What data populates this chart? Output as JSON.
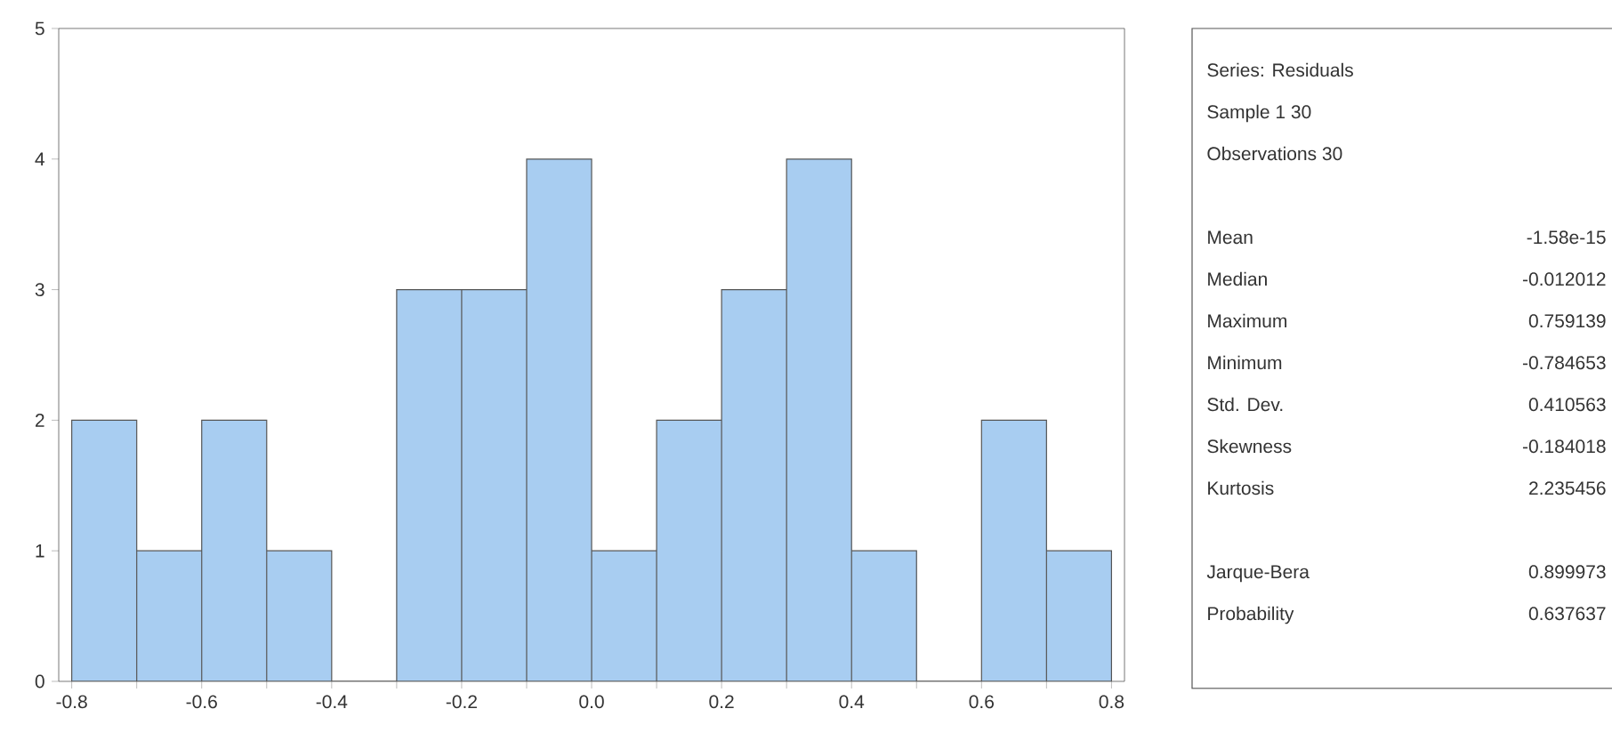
{
  "chart_data": [
    {
      "type": "histogram",
      "bins": [
        -0.8,
        -0.7,
        -0.6,
        -0.5,
        -0.4,
        -0.3,
        -0.2,
        -0.1,
        0.0,
        0.1,
        0.2,
        0.3,
        0.4,
        0.5,
        0.6,
        0.7,
        0.8
      ],
      "values": [
        2,
        1,
        2,
        1,
        0,
        3,
        3,
        4,
        1,
        2,
        3,
        4,
        1,
        0,
        2,
        1
      ],
      "color": "#a8cdf1",
      "xlim": [
        -0.82,
        0.82
      ],
      "xticks": [
        {
          "value": -0.8,
          "label": "-0.8"
        },
        {
          "value": -0.7,
          "label": null
        },
        {
          "value": -0.6,
          "label": "-0.6"
        },
        {
          "value": -0.5,
          "label": null
        },
        {
          "value": -0.4,
          "label": "-0.4"
        },
        {
          "value": -0.3,
          "label": null
        },
        {
          "value": -0.2,
          "label": "-0.2"
        },
        {
          "value": -0.1,
          "label": null
        },
        {
          "value": 0.0,
          "label": "0.0"
        },
        {
          "value": 0.1,
          "label": null
        },
        {
          "value": 0.2,
          "label": "0.2"
        },
        {
          "value": 0.3,
          "label": null
        },
        {
          "value": 0.4,
          "label": "0.4"
        },
        {
          "value": 0.5,
          "label": null
        },
        {
          "value": 0.6,
          "label": "0.6"
        },
        {
          "value": 0.7,
          "label": null
        },
        {
          "value": 0.8,
          "label": "0.8"
        }
      ],
      "ylim": [
        0,
        5
      ],
      "yticks": [
        0,
        1,
        2,
        3,
        4,
        5
      ],
      "grid": false
    },
    {
      "type": "other",
      "annotations": [
        "Series: Residuals",
        "Sample 1 30",
        "Observations 30",
        "Mean",
        "-1.58e-15",
        "Median",
        "-0.012012",
        "Maximum",
        "0.759139",
        "Minimum",
        "-0.784653",
        "Std. Dev.",
        "0.410563",
        "Skewness",
        "-0.184018",
        "Kurtosis",
        "2.235456",
        "Jarque-Bera",
        "0.899973",
        "Probability",
        "0.637637"
      ]
    }
  ]
}
